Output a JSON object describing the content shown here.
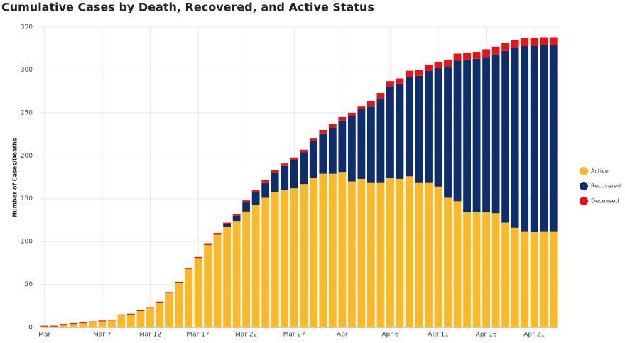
{
  "chart_data": {
    "type": "stacked_bar",
    "title": "Cumulative Cases by Death, Recovered, and Active Status",
    "y_label": "Number of Cases/Deaths",
    "categories": [
      "Mar",
      null,
      null,
      null,
      null,
      null,
      "Mar 7",
      null,
      null,
      null,
      null,
      "Mar 12",
      null,
      null,
      null,
      null,
      "Mar 17",
      null,
      null,
      null,
      null,
      "Mar 22",
      null,
      null,
      null,
      null,
      "Mar 27",
      null,
      null,
      null,
      null,
      "Apr",
      null,
      null,
      null,
      null,
      "Apr 6",
      null,
      null,
      null,
      null,
      "Apr 11",
      null,
      null,
      null,
      null,
      "Apr 16",
      null,
      null,
      null,
      null,
      "Apr 21",
      null,
      null
    ],
    "series": [
      {
        "name": "Active",
        "color": "#fdb827",
        "values": [
          1,
          1,
          3,
          4,
          5,
          6,
          7,
          8,
          14,
          15,
          19,
          23,
          29,
          40,
          52,
          68,
          80,
          96,
          108,
          117,
          124,
          135,
          143,
          151,
          158,
          160,
          162,
          167,
          174,
          179,
          179,
          181,
          170,
          173,
          169,
          169,
          174,
          173,
          176,
          169,
          169,
          164,
          151,
          147,
          134,
          134,
          134,
          133,
          122,
          116,
          112,
          111,
          112,
          112
        ]
      },
      {
        "name": "Recovered",
        "color": "#0d2d6c",
        "values": [
          0,
          0,
          0,
          0,
          0,
          0,
          0,
          0,
          0,
          0,
          0,
          0,
          0,
          0,
          0,
          0,
          0,
          0,
          0,
          3,
          6,
          11,
          15,
          18,
          22,
          28,
          33,
          37,
          43,
          47,
          54,
          60,
          76,
          81,
          89,
          98,
          107,
          111,
          116,
          124,
          130,
          138,
          153,
          164,
          178,
          179,
          181,
          185,
          200,
          210,
          216,
          217,
          217,
          217
        ]
      },
      {
        "name": "Deceased",
        "color": "#ee1111",
        "values": [
          1,
          1,
          1,
          1,
          1,
          1,
          1,
          1,
          1,
          1,
          1,
          1,
          1,
          1,
          1,
          1,
          2,
          2,
          2,
          2,
          2,
          2,
          2,
          3,
          3,
          3,
          3,
          3,
          3,
          4,
          4,
          4,
          4,
          4,
          6,
          6,
          6,
          6,
          7,
          7,
          7,
          7,
          8,
          8,
          8,
          8,
          9,
          9,
          9,
          9,
          9,
          9,
          9,
          9
        ]
      }
    ],
    "ylim": [
      0,
      350
    ],
    "yticks": [
      0,
      50,
      100,
      150,
      200,
      250,
      300,
      350
    ],
    "grid": true,
    "legend": "right"
  }
}
